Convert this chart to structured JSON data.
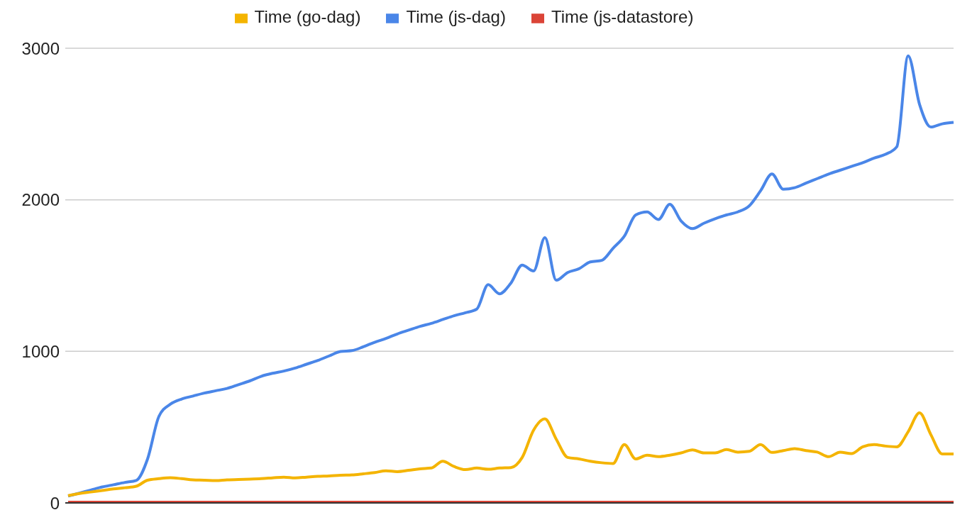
{
  "chart_data": {
    "type": "line",
    "categories": [
      null,
      null,
      null,
      null,
      null,
      null,
      null,
      null,
      null,
      null,
      null,
      null,
      null,
      null,
      null,
      null,
      null,
      null,
      null,
      null,
      null,
      null,
      null,
      null,
      null,
      null,
      null,
      null,
      null,
      null,
      null,
      null,
      null,
      null,
      null,
      null,
      null,
      null,
      null,
      null,
      null,
      null,
      null,
      null,
      null,
      null,
      null,
      null,
      null,
      null,
      null,
      null,
      null,
      null,
      null,
      null,
      null,
      null,
      null,
      null,
      null,
      null,
      null,
      null,
      null,
      null,
      null,
      null,
      null,
      null,
      null,
      null,
      null,
      null,
      null,
      null,
      null,
      null,
      null
    ],
    "series": [
      {
        "name": "Time (js-dag)",
        "color": "#4a86e8",
        "values": [
          45,
          65,
          85,
          105,
          120,
          135,
          148,
          290,
          571,
          651,
          685,
          705,
          725,
          740,
          755,
          780,
          805,
          835,
          855,
          870,
          890,
          915,
          940,
          970,
          999,
          1005,
          1030,
          1060,
          1085,
          1115,
          1140,
          1165,
          1185,
          1210,
          1235,
          1255,
          1279,
          1440,
          1380,
          1450,
          1569,
          1530,
          1750,
          1469,
          1520,
          1545,
          1590,
          1600,
          1680,
          1760,
          1900,
          1920,
          1870,
          1970,
          1860,
          1810,
          1845,
          1875,
          1900,
          1920,
          1960,
          2060,
          2170,
          2070,
          2080,
          2110,
          2140,
          2170,
          2195,
          2220,
          2245,
          2275,
          2300,
          2350,
          2950,
          2630,
          2480,
          2501,
          2511
        ]
      },
      {
        "name": "Time (js-datastore)",
        "color": "#db4437",
        "values": [
          5,
          5,
          5,
          5,
          5,
          5,
          5,
          5,
          5,
          5,
          5,
          5,
          5,
          5,
          5,
          5,
          5,
          5,
          5,
          5,
          5,
          5,
          5,
          5,
          5,
          5,
          5,
          5,
          5,
          5,
          5,
          5,
          5,
          5,
          5,
          5,
          5,
          5,
          5,
          5,
          5,
          5,
          5,
          5,
          5,
          5,
          5,
          5,
          5,
          5,
          5,
          5,
          5,
          5,
          5,
          5,
          5,
          5,
          5,
          5,
          5,
          5,
          5,
          5,
          5,
          5,
          5,
          5,
          5,
          5,
          5,
          5,
          5,
          5,
          5,
          5,
          5,
          5,
          5
        ]
      },
      {
        "name": "Time (go-dag)",
        "color": "#f4b400",
        "values": [
          48,
          62,
          72,
          82,
          92,
          100,
          110,
          150,
          160,
          166,
          160,
          152,
          150,
          147,
          152,
          155,
          157,
          160,
          165,
          170,
          165,
          170,
          175,
          178,
          183,
          185,
          192,
          200,
          212,
          206,
          215,
          225,
          230,
          275,
          240,
          220,
          230,
          222,
          230,
          233,
          300,
          480,
          555,
          420,
          300,
          290,
          275,
          265,
          260,
          385,
          290,
          315,
          305,
          315,
          330,
          350,
          330,
          330,
          352,
          335,
          340,
          385,
          333,
          345,
          358,
          345,
          335,
          305,
          335,
          325,
          370,
          385,
          375,
          370,
          470,
          594,
          450,
          323,
          323
        ]
      }
    ],
    "ylim": [
      0,
      3000
    ],
    "yticks": [
      0,
      1000,
      2000,
      3000
    ],
    "grid": "y",
    "legend": "top",
    "marker": "none",
    "line_style": "solid"
  }
}
